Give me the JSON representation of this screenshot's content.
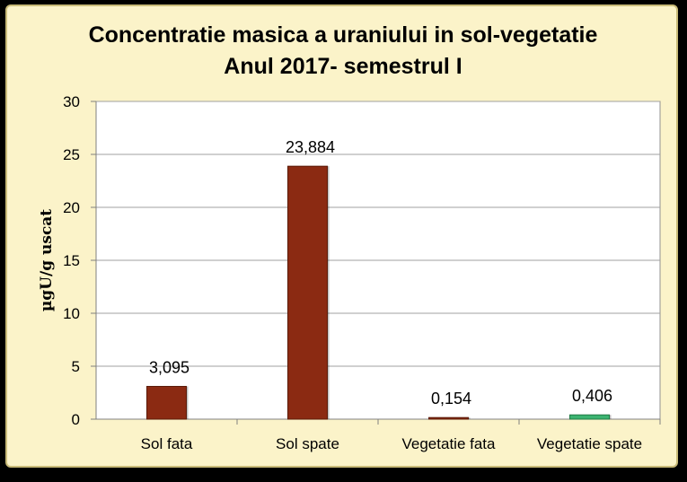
{
  "chart_data": {
    "type": "bar",
    "title": "Concentratie masica a uraniului in sol-vegetatie",
    "subtitle": "Anul 2017- semestrul I",
    "xlabel": "",
    "ylabel": "µgU/g uscat",
    "ylim": [
      0,
      30
    ],
    "yticks": [
      0,
      5,
      10,
      15,
      20,
      25,
      30
    ],
    "grid": true,
    "legend": "none",
    "categories": [
      "Sol fata",
      "Sol spate",
      "Vegetatie fata",
      "Vegetatie spate"
    ],
    "values": [
      3.095,
      23.884,
      0.154,
      0.406
    ],
    "data_labels": [
      "3,095",
      "23,884",
      "0,154",
      "0,406"
    ],
    "bar_colors": [
      "#8b2a12",
      "#8b2a12",
      "#8b2a12",
      "#3cb371"
    ]
  },
  "colors": {
    "background": "#fbf3c9",
    "plot_area": "#ffffff",
    "gridline": "#a0a0a0"
  }
}
